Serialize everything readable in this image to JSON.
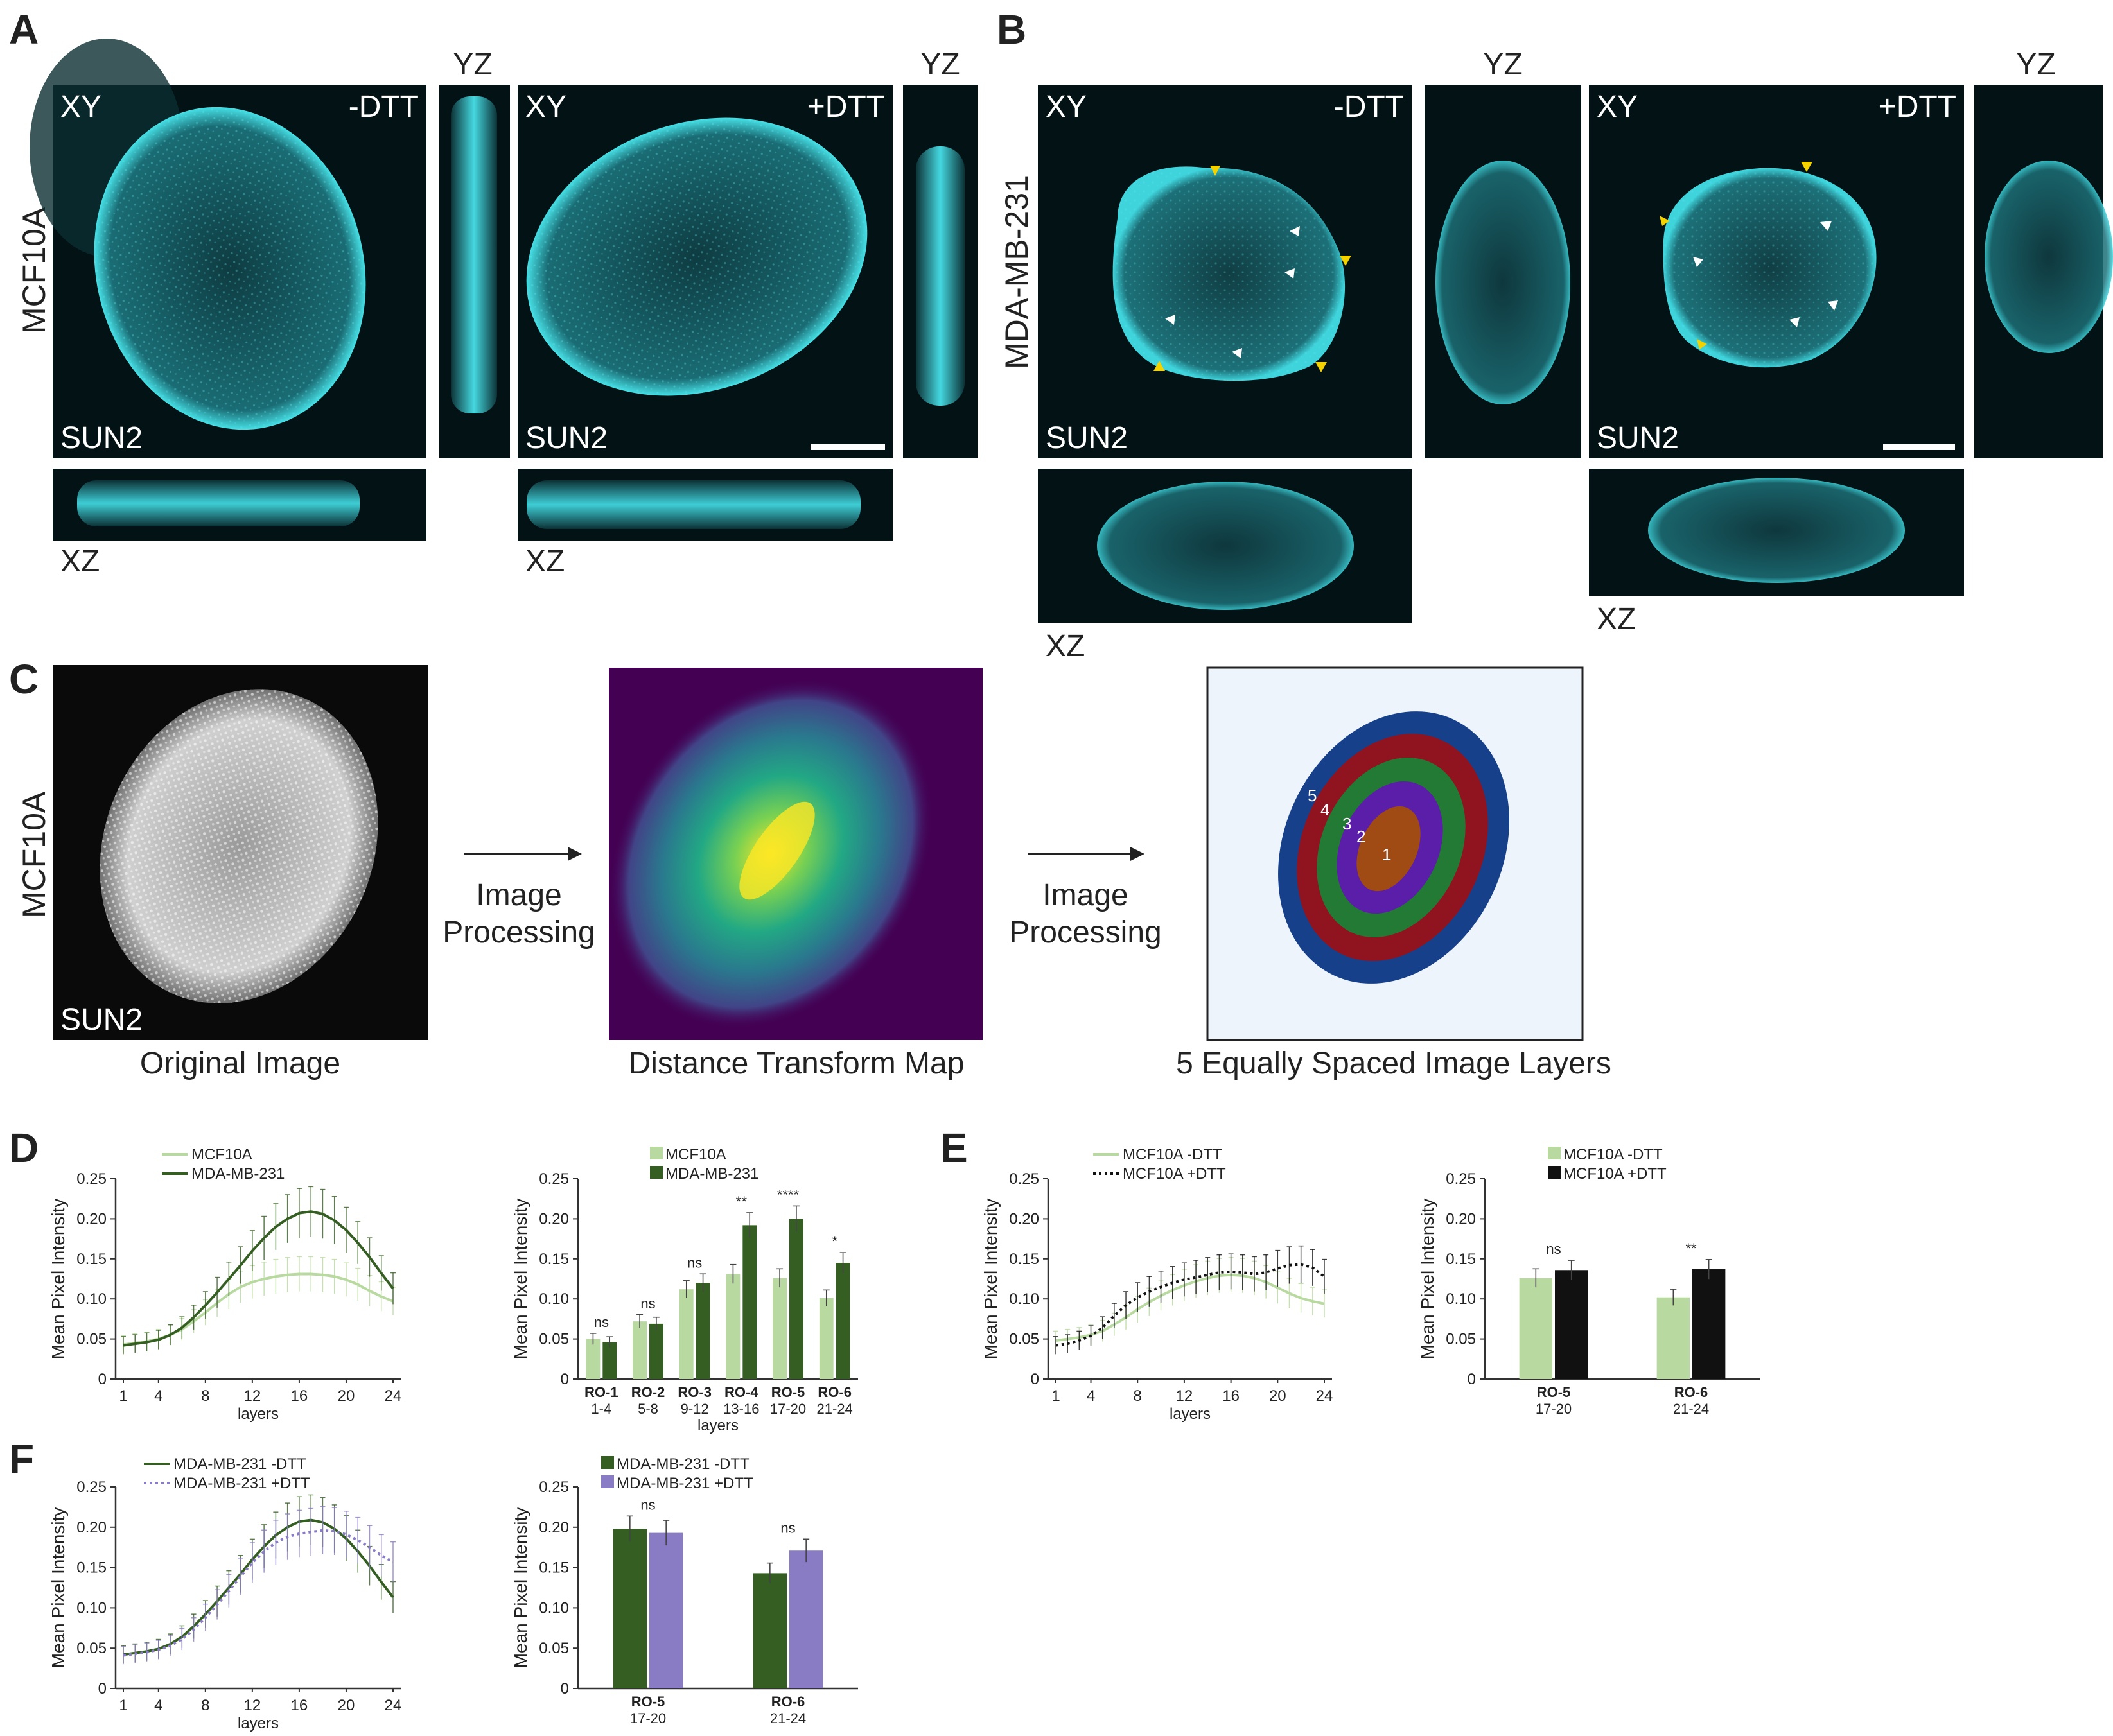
{
  "panels": {
    "A": {
      "letter": "A",
      "cell_line": "MCF10A",
      "minus": "-DTT",
      "plus": "+DTT",
      "xy": "XY",
      "yz": "YZ",
      "xz": "XZ",
      "marker": "SUN2"
    },
    "B": {
      "letter": "B",
      "cell_line": "MDA-MB-231",
      "minus": "-DTT",
      "plus": "+DTT",
      "xy": "XY",
      "yz": "YZ",
      "xz": "XZ",
      "marker": "SUN2"
    },
    "C": {
      "letter": "C",
      "cell_line": "MCF10A",
      "marker": "SUN2",
      "original": "Original Image",
      "arrow1_line1": "Image",
      "arrow1_line2": "Processing",
      "dtm": "Distance Transform Map",
      "arrow2_line1": "Image",
      "arrow2_line2": "Processing",
      "layers": "5 Equally Spaced Image Layers",
      "layer_numbers": [
        "1",
        "2",
        "3",
        "4",
        "5"
      ]
    },
    "D": {
      "letter": "D"
    },
    "E": {
      "letter": "E"
    },
    "F": {
      "letter": "F"
    }
  },
  "colors": {
    "light_green": "#b8d9a0",
    "dark_green": "#355e22",
    "black": "#111111",
    "purple": "#8a7cc4",
    "cyan": "#37c8d0",
    "layer1": "#a04a14",
    "layer2": "#5a1ea8",
    "layer3": "#237a35",
    "layer4": "#8f1420",
    "layer5": "#17408a"
  },
  "chart_data": [
    {
      "id": "D-line",
      "type": "line",
      "title": "",
      "xlabel": "layers",
      "ylabel": "Mean Pixel Intensity",
      "ylim": [
        0,
        0.25
      ],
      "xticks": [
        "1",
        "4",
        "8",
        "12",
        "16",
        "20",
        "24"
      ],
      "yticks": [
        "0",
        "0.05",
        "0.10",
        "0.15",
        "0.20",
        "0.25"
      ],
      "legend": "top",
      "x": [
        1,
        2,
        3,
        4,
        5,
        6,
        7,
        8,
        9,
        10,
        11,
        12,
        13,
        14,
        15,
        16,
        17,
        18,
        19,
        20,
        21,
        22,
        23,
        24
      ],
      "series": [
        {
          "name": "MCF10A",
          "style": "solid-light",
          "values": [
            0.043,
            0.045,
            0.047,
            0.05,
            0.055,
            0.062,
            0.072,
            0.083,
            0.095,
            0.106,
            0.115,
            0.121,
            0.125,
            0.128,
            0.13,
            0.131,
            0.131,
            0.13,
            0.128,
            0.124,
            0.118,
            0.11,
            0.103,
            0.097
          ]
        },
        {
          "name": "MDA-MB-231",
          "style": "solid-dark",
          "values": [
            0.042,
            0.044,
            0.046,
            0.049,
            0.055,
            0.064,
            0.077,
            0.092,
            0.108,
            0.125,
            0.142,
            0.16,
            0.176,
            0.19,
            0.2,
            0.207,
            0.209,
            0.206,
            0.198,
            0.186,
            0.17,
            0.152,
            0.132,
            0.113
          ]
        }
      ]
    },
    {
      "id": "D-bar",
      "type": "bar",
      "title": "",
      "xlabel": "layers",
      "ylabel": "Mean Pixel Intensity",
      "ylim": [
        0,
        0.25
      ],
      "yticks": [
        "0",
        "0.05",
        "0.10",
        "0.15",
        "0.20",
        "0.25"
      ],
      "legend": "top",
      "categories": [
        "RO-1",
        "RO-2",
        "RO-3",
        "RO-4",
        "RO-5",
        "RO-6"
      ],
      "sublabels": [
        "1-4",
        "5-8",
        "9-12",
        "13-16",
        "17-20",
        "21-24"
      ],
      "significance": [
        "ns",
        "ns",
        "ns",
        "**",
        "****",
        "*"
      ],
      "series": [
        {
          "name": "MCF10A",
          "values": [
            0.05,
            0.072,
            0.112,
            0.131,
            0.126,
            0.101
          ]
        },
        {
          "name": "MDA-MB-231",
          "values": [
            0.046,
            0.069,
            0.12,
            0.192,
            0.2,
            0.145
          ]
        }
      ]
    },
    {
      "id": "E-line",
      "type": "line",
      "title": "",
      "xlabel": "layers",
      "ylabel": "Mean Pixel Intensity",
      "ylim": [
        0,
        0.25
      ],
      "xticks": [
        "1",
        "4",
        "8",
        "12",
        "16",
        "20",
        "24"
      ],
      "yticks": [
        "0",
        "0.05",
        "0.10",
        "0.15",
        "0.20",
        "0.25"
      ],
      "legend": "top",
      "x": [
        1,
        2,
        3,
        4,
        5,
        6,
        7,
        8,
        9,
        10,
        11,
        12,
        13,
        14,
        15,
        16,
        17,
        18,
        19,
        20,
        21,
        22,
        23,
        24
      ],
      "series": [
        {
          "name": "MCF10A -DTT",
          "style": "solid-light",
          "values": [
            0.048,
            0.05,
            0.052,
            0.055,
            0.06,
            0.068,
            0.077,
            0.087,
            0.096,
            0.104,
            0.111,
            0.117,
            0.122,
            0.126,
            0.129,
            0.13,
            0.129,
            0.126,
            0.121,
            0.114,
            0.107,
            0.101,
            0.097,
            0.094
          ]
        },
        {
          "name": "MCF10A +DTT",
          "style": "dotted-black",
          "values": [
            0.042,
            0.044,
            0.048,
            0.054,
            0.064,
            0.079,
            0.092,
            0.102,
            0.109,
            0.115,
            0.12,
            0.124,
            0.127,
            0.13,
            0.133,
            0.134,
            0.133,
            0.131,
            0.133,
            0.138,
            0.142,
            0.143,
            0.139,
            0.128
          ]
        }
      ]
    },
    {
      "id": "E-bar",
      "type": "bar",
      "title": "",
      "xlabel": "",
      "ylabel": "Mean Pixel Intensity",
      "ylim": [
        0,
        0.25
      ],
      "yticks": [
        "0",
        "0.05",
        "0.10",
        "0.15",
        "0.20",
        "0.25"
      ],
      "legend": "top",
      "categories": [
        "RO-5",
        "RO-6"
      ],
      "sublabels": [
        "17-20",
        "21-24"
      ],
      "significance": [
        "ns",
        "**"
      ],
      "series": [
        {
          "name": "MCF10A -DTT",
          "values": [
            0.126,
            0.102
          ]
        },
        {
          "name": "MCF10A +DTT",
          "values": [
            0.136,
            0.137
          ]
        }
      ]
    },
    {
      "id": "F-line",
      "type": "line",
      "title": "",
      "xlabel": "layers",
      "ylabel": "Mean Pixel Intensity",
      "ylim": [
        0,
        0.25
      ],
      "xticks": [
        "1",
        "4",
        "8",
        "12",
        "16",
        "20",
        "24"
      ],
      "yticks": [
        "0",
        "0.05",
        "0.10",
        "0.15",
        "0.20",
        "0.25"
      ],
      "legend": "top",
      "x": [
        1,
        2,
        3,
        4,
        5,
        6,
        7,
        8,
        9,
        10,
        11,
        12,
        13,
        14,
        15,
        16,
        17,
        18,
        19,
        20,
        21,
        22,
        23,
        24
      ],
      "series": [
        {
          "name": "MDA-MB-231 -DTT",
          "style": "solid-dark",
          "values": [
            0.042,
            0.044,
            0.046,
            0.049,
            0.055,
            0.064,
            0.077,
            0.092,
            0.108,
            0.125,
            0.142,
            0.16,
            0.176,
            0.19,
            0.2,
            0.207,
            0.209,
            0.206,
            0.198,
            0.186,
            0.17,
            0.152,
            0.132,
            0.113
          ]
        },
        {
          "name": "MDA-MB-231 +DTT",
          "style": "dotted-purple",
          "values": [
            0.041,
            0.043,
            0.045,
            0.048,
            0.053,
            0.061,
            0.073,
            0.088,
            0.104,
            0.121,
            0.139,
            0.156,
            0.17,
            0.181,
            0.188,
            0.192,
            0.194,
            0.196,
            0.195,
            0.191,
            0.184,
            0.175,
            0.165,
            0.157
          ]
        }
      ]
    },
    {
      "id": "F-bar",
      "type": "bar",
      "title": "",
      "xlabel": "",
      "ylabel": "Mean Pixel Intensity",
      "ylim": [
        0,
        0.25
      ],
      "yticks": [
        "0",
        "0.05",
        "0.10",
        "0.15",
        "0.20",
        "0.25"
      ],
      "legend": "top",
      "categories": [
        "RO-5",
        "RO-6"
      ],
      "sublabels": [
        "17-20",
        "21-24"
      ],
      "significance": [
        "ns",
        "ns"
      ],
      "series": [
        {
          "name": "MDA-MB-231 -DTT",
          "values": [
            0.198,
            0.143
          ]
        },
        {
          "name": "MDA-MB-231 +DTT",
          "values": [
            0.193,
            0.171
          ]
        }
      ]
    }
  ]
}
